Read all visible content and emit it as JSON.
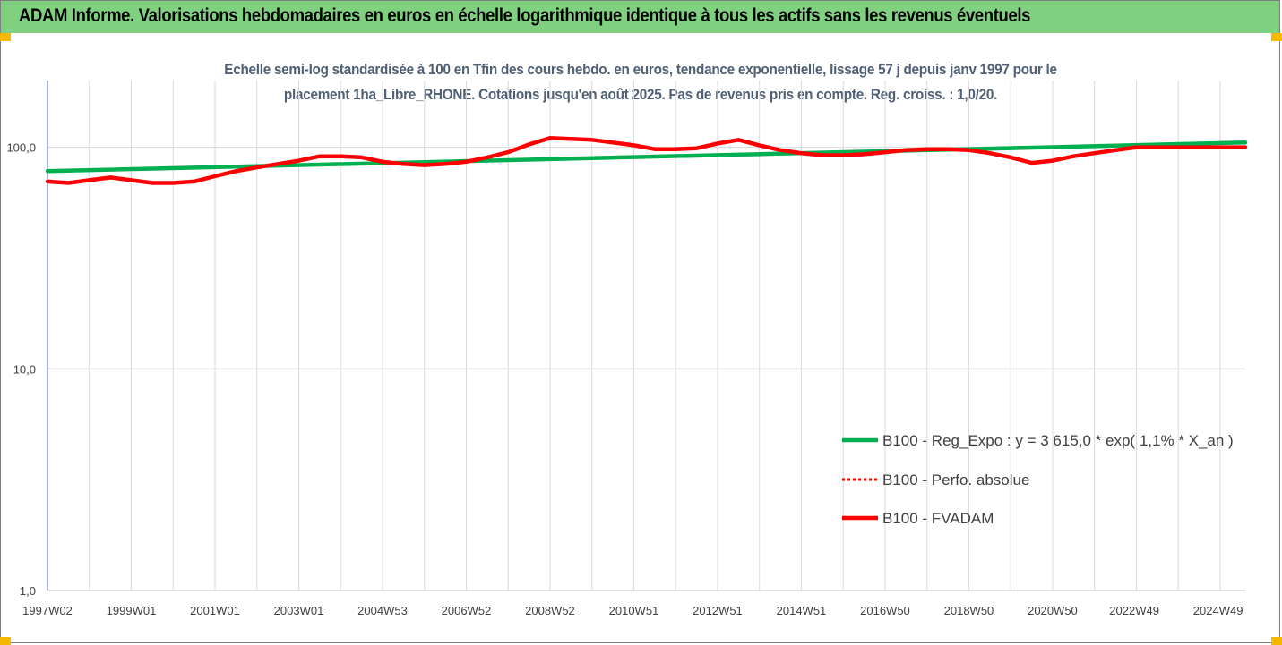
{
  "header": {
    "title": "ADAM Informe. Valorisations hebdomadaires en euros en échelle logarithmique identique à tous les actifs sans les revenus éventuels",
    "bg_color": "#7fd07f"
  },
  "chart_data": {
    "type": "line",
    "title": "Echelle semi-log standardisée à 100 en Tfin des cours hebdo. en euros, tendance exponentielle, lissage 57 j depuis janv 1997 pour le placement 1ha_Libre_RHONE. Cotations jusqu'en août 2025. Pas de revenus pris en compte. Reg. croiss. : 1,0/20.",
    "title_line1": "Echelle semi-log standardisée à 100 en Tfin des cours hebdo. en euros, tendance exponentielle, lissage 57 j depuis janv 1997 pour le",
    "title_line2": "placement 1ha_Libre_RHONE. Cotations jusqu'en août 2025. Pas de revenus pris en compte. Reg. croiss. : 1,0/20.",
    "xlabel": "",
    "ylabel": "",
    "y_scale": "log",
    "ylim": [
      1,
      200
    ],
    "xlim": [
      1997.0,
      2025.6
    ],
    "y_ticks": [
      1,
      10,
      100
    ],
    "y_tick_labels": [
      "1,0",
      "10,0",
      "100,0"
    ],
    "x_ticks": [
      1997.0,
      1999.0,
      2001.0,
      2003.0,
      2005.0,
      2007.0,
      2009.0,
      2011.0,
      2013.0,
      2015.0,
      2017.0,
      2019.0,
      2021.0,
      2022.95,
      2024.95
    ],
    "x_tick_labels": [
      "1997W02",
      "1999W01",
      "2001W01",
      "2003W01",
      "2004W53",
      "2006W52",
      "2008W52",
      "2010W51",
      "2012W51",
      "2014W51",
      "2016W50",
      "2018W50",
      "2020W50",
      "2022W49",
      "2024W49"
    ],
    "grid": "vertical",
    "legend_position": "right",
    "series": [
      {
        "name": "B100 - Reg_Expo : y = 3 615,0 * exp( 1,1% *  X_an )",
        "color": "#00b050",
        "style": "solid",
        "x": [
          1997.0,
          2025.6
        ],
        "values": [
          78,
          105
        ]
      },
      {
        "name": "B100 - Perfo. absolue",
        "color": "#ff0000",
        "style": "dotted",
        "x": [],
        "values": []
      },
      {
        "name": "B100 - FVADAM",
        "color": "#ff0000",
        "style": "solid",
        "x": [
          1997.0,
          1997.5,
          1998.0,
          1998.5,
          1999.0,
          1999.5,
          2000.0,
          2000.5,
          2001.0,
          2001.5,
          2002.0,
          2002.5,
          2003.0,
          2003.5,
          2004.0,
          2004.5,
          2005.0,
          2005.5,
          2006.0,
          2006.5,
          2007.0,
          2007.5,
          2008.0,
          2008.5,
          2009.0,
          2009.5,
          2010.0,
          2010.5,
          2011.0,
          2011.5,
          2012.0,
          2012.5,
          2013.0,
          2013.5,
          2014.0,
          2014.5,
          2015.0,
          2015.5,
          2016.0,
          2016.5,
          2017.0,
          2017.5,
          2018.0,
          2018.5,
          2019.0,
          2019.5,
          2020.0,
          2020.5,
          2021.0,
          2021.5,
          2022.0,
          2022.5,
          2023.0,
          2023.5,
          2024.0,
          2024.5,
          2025.0,
          2025.6
        ],
        "values": [
          70,
          69,
          71,
          73,
          71,
          69,
          69,
          70,
          74,
          78,
          81,
          84,
          87,
          91,
          91,
          90,
          86,
          84,
          83,
          84,
          86,
          90,
          95,
          103,
          110,
          109,
          108,
          105,
          102,
          98,
          98,
          99,
          104,
          108,
          102,
          97,
          94,
          92,
          92,
          93,
          95,
          97,
          98,
          98,
          97,
          94,
          90,
          85,
          87,
          91,
          94,
          97,
          100,
          100,
          100,
          100,
          100,
          100
        ]
      }
    ]
  }
}
